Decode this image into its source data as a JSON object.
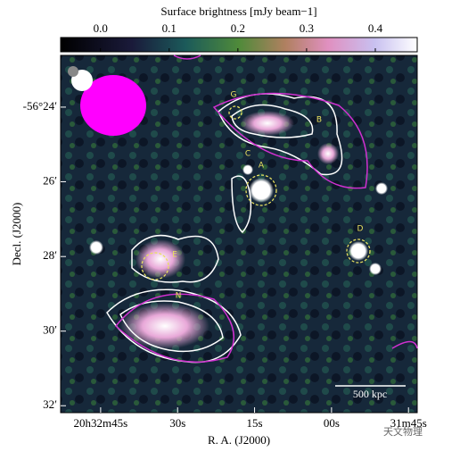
{
  "chart_data": {
    "type": "image",
    "colorbar_label": "Surface brightness [mJy beam−1]",
    "clim": [
      -0.058,
      0.461
    ],
    "cticks": [
      {
        "value": 0,
        "label": "0.0"
      },
      0.1,
      0.2,
      0.3,
      0.4
    ],
    "xlabel": "R. A. (J2000)",
    "ylabel": "Decl. (J2000)",
    "xlim": [
      1972.8,
      1903.3
    ],
    "xticks": [
      {
        "value": 1965,
        "label": "20h32m45s"
      },
      {
        "value": 1950,
        "label": "30s"
      },
      {
        "value": 1935,
        "label": "15s"
      },
      {
        "value": 1920,
        "label": "00s"
      },
      {
        "value": 1905,
        "label": "31m45s"
      }
    ],
    "ylim": [
      -56.3769,
      -56.5364
    ],
    "yticks": [
      {
        "value": -56.4,
        "label": "-56°24′"
      },
      {
        "value": -56.4333,
        "label": "26′"
      },
      {
        "value": -56.4667,
        "label": "28′"
      },
      {
        "value": -56.5,
        "label": "30′"
      },
      {
        "value": -56.5333,
        "label": "32′"
      }
    ],
    "annotations": [
      "G",
      "B",
      "C",
      "A",
      "D",
      "E",
      "N"
    ],
    "scale_bar": "500 kpc",
    "watermark": "天文物理"
  }
}
